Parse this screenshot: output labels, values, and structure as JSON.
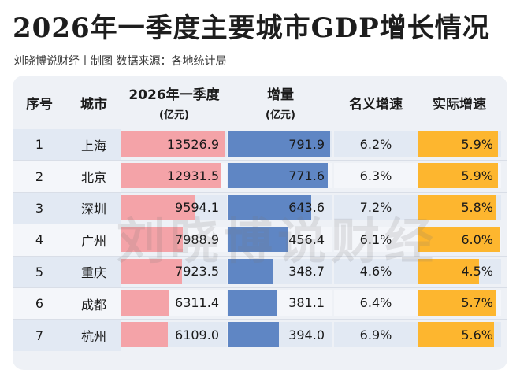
{
  "header": {
    "title": "2026年一季度主要城市GDP增长情况",
    "subtitle": "刘晓博说财经丨制图    数据来源：各地统计局"
  },
  "watermark": "刘晓博说财经",
  "table": {
    "columns": [
      {
        "label": "序号",
        "unit": ""
      },
      {
        "label": "城市",
        "unit": ""
      },
      {
        "label": "2026年一季度",
        "unit": "(亿元)"
      },
      {
        "label": "增量",
        "unit": "(亿元)"
      },
      {
        "label": "名义增速",
        "unit": ""
      },
      {
        "label": "实际增速",
        "unit": ""
      }
    ],
    "rows": [
      {
        "rank": "1",
        "city": "上海",
        "gdp": "13526.9",
        "increment": "791.9",
        "nominal": "6.2%",
        "real": "5.9%"
      },
      {
        "rank": "2",
        "city": "北京",
        "gdp": "12931.5",
        "increment": "771.6",
        "nominal": "6.3%",
        "real": "5.9%"
      },
      {
        "rank": "3",
        "city": "深圳",
        "gdp": "9594.1",
        "increment": "643.6",
        "nominal": "7.2%",
        "real": "5.8%"
      },
      {
        "rank": "4",
        "city": "广州",
        "gdp": "7988.9",
        "increment": "456.4",
        "nominal": "6.1%",
        "real": "6.0%"
      },
      {
        "rank": "5",
        "city": "重庆",
        "gdp": "7923.5",
        "increment": "348.7",
        "nominal": "4.6%",
        "real": "4.5%"
      },
      {
        "rank": "6",
        "city": "成都",
        "gdp": "6311.4",
        "increment": "381.1",
        "nominal": "6.4%",
        "real": "5.7%"
      },
      {
        "rank": "7",
        "city": "杭州",
        "gdp": "6109.0",
        "increment": "394.0",
        "nominal": "6.9%",
        "real": "5.6%"
      }
    ]
  },
  "colors": {
    "gdp_bar": "#f4a3a8",
    "increment_bar": "#5f86c4",
    "real_bar": "#fdb62f"
  },
  "chart_data": {
    "type": "table",
    "title": "2026年一季度主要城市GDP增长情况",
    "categories": [
      "上海",
      "北京",
      "深圳",
      "广州",
      "重庆",
      "成都",
      "杭州"
    ],
    "series": [
      {
        "name": "2026年一季度(亿元)",
        "values": [
          13526.9,
          12931.5,
          9594.1,
          7988.9,
          7923.5,
          6311.4,
          6109.0
        ]
      },
      {
        "name": "增量(亿元)",
        "values": [
          791.9,
          771.6,
          643.6,
          456.4,
          348.7,
          381.1,
          394.0
        ]
      },
      {
        "name": "名义增速",
        "values": [
          6.2,
          6.3,
          7.2,
          6.1,
          4.6,
          6.4,
          6.9
        ]
      },
      {
        "name": "实际增速",
        "values": [
          5.9,
          5.9,
          5.8,
          6.0,
          4.5,
          5.7,
          5.6
        ]
      }
    ]
  }
}
